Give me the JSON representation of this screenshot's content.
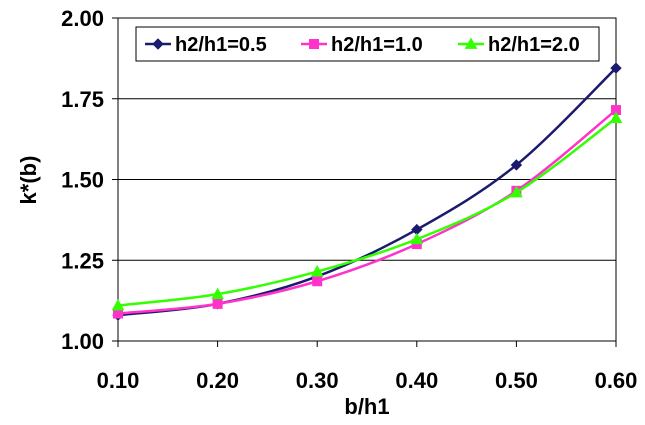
{
  "chart_data": {
    "type": "line",
    "title": "",
    "xlabel": "b/h1",
    "ylabel": "k*(b)",
    "x": [
      0.1,
      0.2,
      0.3,
      0.4,
      0.5,
      0.6
    ],
    "x_tick_labels": [
      "0.10",
      "0.20",
      "0.30",
      "0.40",
      "0.50",
      "0.60"
    ],
    "y_tick_values": [
      1.0,
      1.25,
      1.5,
      1.75,
      2.0
    ],
    "y_tick_labels": [
      "1.00",
      "1.25",
      "1.50",
      "1.75",
      "2.00"
    ],
    "xlim": [
      0.1,
      0.6
    ],
    "ylim": [
      1.0,
      2.0
    ],
    "grid": "horizontal",
    "legend_position": "top",
    "series": [
      {
        "name": "h2/h1=0.5",
        "color": "#1a1a6e",
        "marker": "diamond",
        "values": [
          1.08,
          1.115,
          1.2,
          1.345,
          1.545,
          1.845
        ]
      },
      {
        "name": "h2/h1=1.0",
        "color": "#ff33cc",
        "marker": "square",
        "values": [
          1.085,
          1.115,
          1.185,
          1.3,
          1.465,
          1.715
        ]
      },
      {
        "name": "h2/h1=2.0",
        "color": "#33ff00",
        "marker": "triangle",
        "values": [
          1.11,
          1.145,
          1.215,
          1.315,
          1.46,
          1.69
        ]
      }
    ]
  }
}
